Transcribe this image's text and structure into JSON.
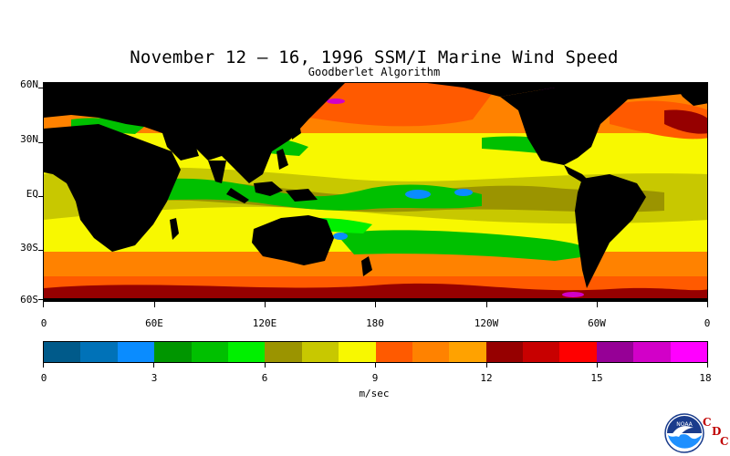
{
  "title": "November 12 – 16, 1996 SSM/I Marine Wind Speed",
  "subtitle": "Goodberlet Algorithm",
  "lat_labels": [
    "60N",
    "30N",
    "EQ",
    "30S",
    "60S"
  ],
  "lon_labels": [
    "0",
    "60E",
    "120E",
    "180",
    "120W",
    "60W",
    "0"
  ],
  "colorbar": {
    "colors": [
      "#005a8a",
      "#0072b8",
      "#0a8cff",
      "#009600",
      "#00c000",
      "#00f000",
      "#9b9400",
      "#c8c800",
      "#f8f800",
      "#ff5a00",
      "#ff8200",
      "#ffa200",
      "#960000",
      "#c80000",
      "#ff0000",
      "#960096",
      "#d200c8",
      "#ff00ff"
    ],
    "tick_labels": [
      "0",
      "3",
      "6",
      "9",
      "12",
      "15",
      "18"
    ],
    "units": "m/sec"
  },
  "map_colors": {
    "land": "#000000",
    "calm": "#00c000",
    "light": "#9b9400",
    "moderate": "#f8f800",
    "strong": "#ff8200",
    "gale": "#ff5a00",
    "storm": "#960000",
    "extreme": "#d200c8",
    "very_calm": "#0a8cff"
  },
  "logo": {
    "name": "NOAA",
    "letters": [
      "C",
      "D",
      "C"
    ]
  }
}
